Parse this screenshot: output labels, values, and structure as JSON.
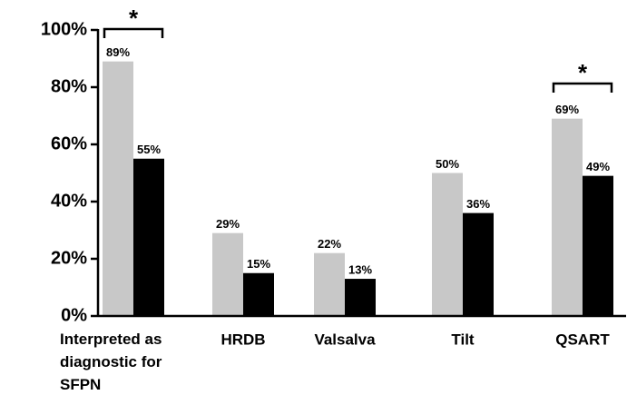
{
  "chart_data": {
    "type": "bar",
    "categories": [
      "Interpreted as diagnostic for SFPN",
      "HRDB",
      "Valsalva",
      "Tilt",
      "QSART"
    ],
    "series": [
      {
        "color": "#c8c8c8",
        "values": [
          89,
          29,
          22,
          50,
          69
        ],
        "value_labels": [
          "89%",
          "29%",
          "22%",
          "50%",
          "69%"
        ]
      },
      {
        "color": "#000000",
        "values": [
          55,
          15,
          13,
          36,
          49
        ],
        "value_labels": [
          "55%",
          "15%",
          "13%",
          "36%",
          "49%"
        ]
      }
    ],
    "ylim": [
      0,
      100
    ],
    "yticks": [
      {
        "value": 0,
        "label": "0%"
      },
      {
        "value": 20,
        "label": "20%"
      },
      {
        "value": 40,
        "label": "40%"
      },
      {
        "value": 60,
        "label": "60%"
      },
      {
        "value": 80,
        "label": "80%"
      },
      {
        "value": 100,
        "label": "100%"
      }
    ],
    "annotations": [
      "*",
      "*"
    ]
  }
}
